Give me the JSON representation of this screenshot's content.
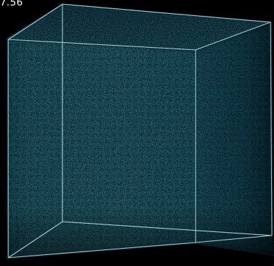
{
  "overlay": {
    "timestamp": "7.56"
  },
  "colors": {
    "background": "#000000",
    "particles_bright": "#4fd6f2",
    "particles_mid": "#2ab3d6",
    "particles_dark": "#0e5e78",
    "edges": "#b8f2ff"
  }
}
